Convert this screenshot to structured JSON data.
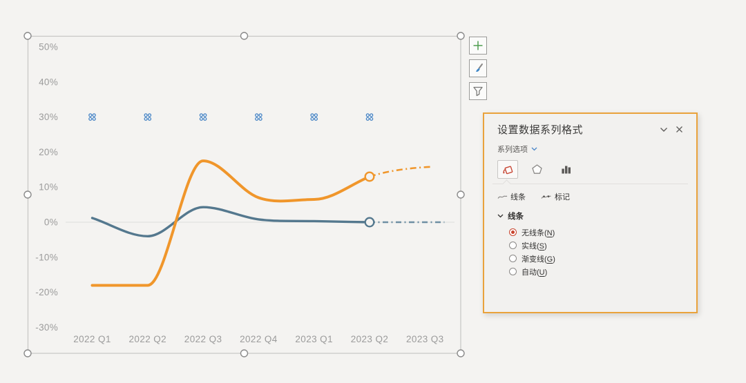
{
  "chart": {
    "y_tick_labels": [
      "50%",
      "40%",
      "30%",
      "20%",
      "10%",
      "0%",
      "-10%",
      "-20%",
      "-30%"
    ],
    "axis_color": "#9B9B9B",
    "gridline_color": "#DCDCDA",
    "frame_color": "#C6C6C4"
  },
  "chart_data": {
    "type": "line",
    "categories": [
      "2022 Q1",
      "2022 Q2",
      "2022 Q3",
      "2022 Q4",
      "2023 Q1",
      "2023 Q2",
      "2023 Q3"
    ],
    "ylim": [
      -30,
      50
    ],
    "y_ticks_percent": [
      50,
      40,
      30,
      20,
      10,
      0,
      -10,
      -20,
      -30
    ],
    "grid": "zero-line-only",
    "legend": "none",
    "series": [
      {
        "name": "orange-line-actual",
        "color": "#F0962B",
        "style": "smooth-solid",
        "values": [
          -18,
          -18,
          17.5,
          7,
          6.5,
          13,
          null
        ]
      },
      {
        "name": "orange-line-forecast",
        "color": "#F0962B",
        "style": "dash-dot",
        "values": [
          null,
          null,
          null,
          null,
          null,
          13,
          15.8
        ]
      },
      {
        "name": "blue-gray-line-actual",
        "color": "#54788E",
        "style": "smooth-solid",
        "values": [
          1.2,
          -4,
          4.3,
          0.8,
          0.3,
          0,
          null
        ]
      },
      {
        "name": "blue-gray-line-forecast",
        "color": "#6E8FA3",
        "style": "dash-dot",
        "values": [
          null,
          null,
          null,
          null,
          null,
          0,
          0
        ]
      }
    ],
    "open_circle_markers": {
      "category_index": 5,
      "points": [
        {
          "series": "orange-line-actual",
          "value": 13
        },
        {
          "series": "blue-gray-line-actual",
          "value": 0
        }
      ]
    },
    "selected_point_indicators": {
      "value": 30,
      "category_indexes": [
        0,
        1,
        2,
        3,
        4,
        5
      ],
      "color": "#3F7EC0"
    }
  },
  "chart_buttons": [
    {
      "icon": "plus-icon",
      "color": "#4E9D4E"
    },
    {
      "icon": "brush-icon",
      "color": "#3E87C8"
    },
    {
      "icon": "funnel-icon",
      "color": "#7A7A78"
    }
  ],
  "panel": {
    "title": "设置数据系列格式",
    "accent_color": "#E9A23B",
    "series_options_label": "系列选项",
    "tabs": [
      {
        "icon": "paint-bucket-icon",
        "selected": true
      },
      {
        "icon": "pentagon-icon",
        "selected": false
      },
      {
        "icon": "bar-chart-icon",
        "selected": false
      }
    ],
    "subtabs": [
      {
        "icon": "line-squiggle-icon",
        "label": "线条"
      },
      {
        "icon": "marker-squiggle-icon",
        "label": "标记"
      }
    ],
    "section_label": "线条",
    "radios": [
      {
        "label": "无线条",
        "accesskey": "N",
        "selected": true
      },
      {
        "label": "实线",
        "accesskey": "S",
        "selected": false
      },
      {
        "label": "渐变线",
        "accesskey": "G",
        "selected": false
      },
      {
        "label": "自动",
        "accesskey": "U",
        "selected": false
      }
    ],
    "radio_selected_color": "#C8432C"
  }
}
